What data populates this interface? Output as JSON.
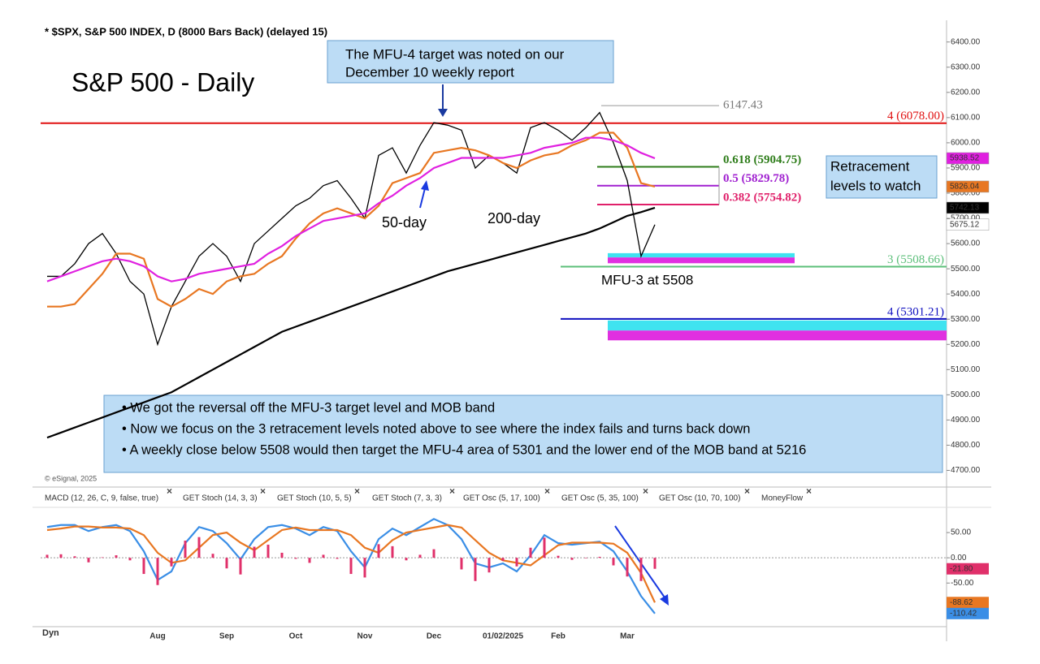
{
  "chart_data": [
    {
      "type": "line",
      "title": "* $SPX, S&P 500 INDEX, D (8000 Bars Back) (delayed 15)",
      "subtitle": "S&P 500 - Daily",
      "categories": [
        null,
        null,
        null,
        null,
        null,
        null,
        null,
        null,
        "Aug",
        null,
        null,
        null,
        null,
        "Sep",
        null,
        null,
        null,
        null,
        "Oct",
        null,
        null,
        null,
        null,
        "Nov",
        null,
        null,
        null,
        null,
        "Dec",
        null,
        null,
        null,
        null,
        "01/02/2025",
        null,
        null,
        null,
        "Feb",
        null,
        null,
        null,
        null,
        "Mar",
        null,
        null
      ],
      "series": [
        {
          "color": "#000000",
          "values": [
            5470,
            5470,
            5520,
            5600,
            5640,
            5560,
            5450,
            5400,
            5200,
            5350,
            5450,
            5550,
            5600,
            5550,
            5450,
            5600,
            5650,
            5700,
            5750,
            5780,
            5830,
            5850,
            5780,
            5700,
            5950,
            5980,
            5880,
            5990,
            6080,
            6070,
            6050,
            5900,
            5950,
            5920,
            5880,
            6060,
            6080,
            6050,
            6010,
            6060,
            6120,
            6000,
            5850,
            5550,
            5675.12
          ]
        },
        {
          "color": "#e87722",
          "values": [
            5350,
            5350,
            5360,
            5420,
            5480,
            5560,
            5560,
            5540,
            5380,
            5350,
            5380,
            5420,
            5400,
            5450,
            5470,
            5480,
            5520,
            5550,
            5620,
            5680,
            5720,
            5740,
            5720,
            5700,
            5750,
            5840,
            5860,
            5880,
            5960,
            5970,
            5980,
            5970,
            5950,
            5920,
            5900,
            5930,
            5950,
            5960,
            5990,
            6010,
            6040,
            6040,
            5980,
            5840,
            5826.04
          ]
        },
        {
          "color": "#e020e0",
          "values": [
            5450,
            5470,
            5490,
            5510,
            5530,
            5540,
            5530,
            5510,
            5470,
            5450,
            5460,
            5480,
            5490,
            5500,
            5510,
            5520,
            5560,
            5590,
            5630,
            5660,
            5690,
            5700,
            5710,
            5720,
            5760,
            5790,
            5830,
            5860,
            5900,
            5920,
            5940,
            5940,
            5940,
            5940,
            5950,
            5960,
            5980,
            5990,
            6000,
            6020,
            6020,
            6010,
            5990,
            5960,
            5938.52
          ]
        },
        {
          "color": "#000000",
          "values": [
            4830,
            4850,
            4870,
            4890,
            4910,
            4930,
            4950,
            4970,
            4990,
            5010,
            5040,
            5070,
            5100,
            5130,
            5160,
            5190,
            5220,
            5250,
            5270,
            5290,
            5310,
            5330,
            5350,
            5370,
            5390,
            5410,
            5430,
            5450,
            5470,
            5490,
            5505,
            5520,
            5535,
            5550,
            5565,
            5580,
            5595,
            5610,
            5625,
            5640,
            5660,
            5685,
            5710,
            5725,
            5742.13
          ]
        }
      ],
      "ylim": [
        4650,
        6470
      ],
      "yticks": [
        {
          "value": 4700,
          "label": "4700.00"
        },
        {
          "value": 4800,
          "label": "4800.00"
        },
        {
          "value": 4900,
          "label": "4900.00"
        },
        {
          "value": 5000,
          "label": "5000.00"
        },
        {
          "value": 5100,
          "label": "5100.00"
        },
        {
          "value": 5200,
          "label": "5200.00"
        },
        {
          "value": 5300,
          "label": "5300.00"
        },
        {
          "value": 5400,
          "label": "5400.00"
        },
        {
          "value": 5500,
          "label": "5500.00"
        },
        {
          "value": 5600,
          "label": "5600.00"
        },
        {
          "value": 5700,
          "label": "5700.00"
        },
        {
          "value": 5800,
          "label": "5800.00"
        },
        {
          "value": 5900,
          "label": "5900.00"
        },
        {
          "value": 6000,
          "label": "6000.00"
        },
        {
          "value": 6100,
          "label": "6100.00"
        },
        {
          "value": 6200,
          "label": "6200.00"
        },
        {
          "value": 6300,
          "label": "6300.00"
        },
        {
          "value": 6400,
          "label": "6400.00"
        }
      ],
      "levels": [
        {
          "value": 6078,
          "label": "4 (6078.00)",
          "color": "#e01010"
        },
        {
          "value": 5508.66,
          "label": "3 (5508.66)",
          "color": "#5cbf7a"
        },
        {
          "value": 5301.21,
          "label": "4 (5301.21)",
          "color": "#1010c0"
        }
      ],
      "retracements": [
        {
          "value": 5904.75,
          "label": "0.618 (5904.75)",
          "color": "#2e7d1a"
        },
        {
          "value": 5829.78,
          "label": "0.5 (5829.78)",
          "color": "#a020d0"
        },
        {
          "value": 5754.82,
          "label": "0.382 (5754.82)",
          "color": "#e0206a"
        }
      ],
      "high": {
        "value": 6147.43,
        "label": "6147.43"
      },
      "bands": [
        {
          "from": 5545,
          "to": 5562,
          "color": "#3fe3f0"
        },
        {
          "from": 5522,
          "to": 5545,
          "color": "#e030e0"
        },
        {
          "from": 5255,
          "to": 5295,
          "color": "#3fe3f0"
        },
        {
          "from": 5216,
          "to": 5255,
          "color": "#e030e0"
        }
      ],
      "last_values": [
        {
          "value": 5938.52,
          "color": "#e020e0"
        },
        {
          "value": 5826.04,
          "color": "#e87722"
        },
        {
          "value": 5742.13,
          "color": "#000000"
        },
        {
          "value": 5675.12,
          "color": "#ffffff"
        }
      ],
      "note": [
        "The MFU-4 target was noted on our",
        "December 10 weekly report"
      ],
      "retracement_note": [
        "Retracement",
        "levels to watch"
      ],
      "ma_labels": [
        "50-day",
        "200-day"
      ],
      "mfu3_label": "MFU-3 at 5508",
      "bullets": [
        "• We got the reversal off the MFU-3 target level and MOB band",
        "• Now we focus on the 3 retracement levels noted above to see where the index fails and turns back down",
        "• A weekly close below 5508 would then target the MFU-4 area of 5301 and the lower end of the MOB band at 5216"
      ],
      "copyright": "© eSignal, 2025"
    },
    {
      "type": "line",
      "tabs": [
        "MACD (12, 26, C, 9, false, true)",
        "GET Stoch (14, 3, 3)",
        "GET Stoch (10, 5, 5)",
        "GET Stoch (7, 3, 3)",
        "GET Osc (5, 17, 100)",
        "GET Osc (5, 35, 100)",
        "GET Osc (10, 70, 100)",
        "MoneyFlow"
      ],
      "close_symbol": "×",
      "footer": "Dyn",
      "series": [
        {
          "color": "#3a8ee6",
          "values": [
            61,
            65,
            65,
            53,
            61,
            65,
            53,
            13,
            -44,
            -27,
            29,
            61,
            53,
            29,
            -3,
            37,
            61,
            65,
            58,
            45,
            61,
            53,
            13,
            -19,
            37,
            58,
            45,
            61,
            77,
            65,
            37,
            -11,
            -19,
            -11,
            -27,
            5,
            45,
            29,
            26,
            29,
            32,
            13,
            -27,
            -76,
            -110.42
          ]
        },
        {
          "color": "#e87722",
          "values": [
            55,
            58,
            62,
            62,
            60,
            60,
            58,
            45,
            10,
            -10,
            -5,
            20,
            45,
            50,
            30,
            15,
            35,
            55,
            60,
            55,
            55,
            55,
            45,
            20,
            10,
            35,
            50,
            55,
            60,
            65,
            60,
            35,
            10,
            -5,
            -10,
            -15,
            5,
            25,
            30,
            30,
            30,
            28,
            10,
            -30,
            -88.62
          ]
        },
        {
          "type": "bar",
          "color": "#e0306a",
          "values": [
            6,
            7,
            3,
            -9,
            1,
            5,
            -5,
            -32,
            -54,
            -17,
            34,
            41,
            8,
            -21,
            -33,
            22,
            26,
            10,
            -2,
            -10,
            6,
            -2,
            -32,
            -39,
            27,
            23,
            -5,
            6,
            17,
            0,
            -23,
            -46,
            -29,
            -6,
            -17,
            20,
            40,
            4,
            -4,
            -1,
            2,
            -15,
            -37,
            -46,
            -21.8
          ]
        }
      ],
      "ylim": [
        -130,
        100
      ],
      "yticks": [
        {
          "value": 50,
          "label": "50.00"
        },
        {
          "value": 0,
          "label": "0.00"
        },
        {
          "value": -50,
          "label": "-50.00"
        }
      ],
      "last_values": [
        {
          "value": -21.8,
          "label": "-21.80",
          "color": "#e0306a"
        },
        {
          "value": -88.62,
          "label": "-88.62",
          "color": "#e87722"
        },
        {
          "value": -110.42,
          "label": "-110.42",
          "color": "#3a8ee6"
        }
      ]
    }
  ]
}
